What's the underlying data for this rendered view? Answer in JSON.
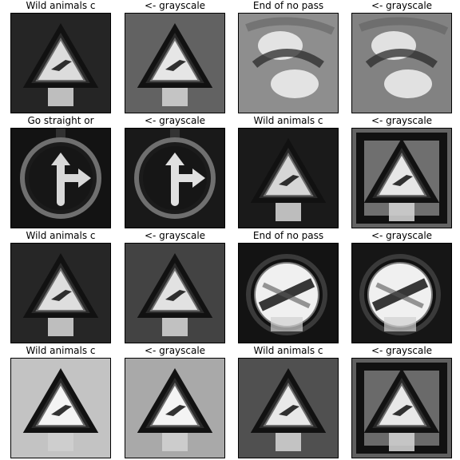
{
  "grid": {
    "tiles": [
      {
        "title": "Wild animals c",
        "kind": "triangle",
        "tone": "color",
        "bg": "#2a2a2a",
        "accent": "#dcdcdc"
      },
      {
        "title": "<- grayscale",
        "kind": "triangle",
        "tone": "gray",
        "bg": "#6e6e6e",
        "accent": "#e6e6e6"
      },
      {
        "title": "End of no pass",
        "kind": "blurred-circles",
        "tone": "color",
        "bg": "#8a8a8a",
        "accent": "#f2f2f2"
      },
      {
        "title": "<- grayscale",
        "kind": "blurred-circles",
        "tone": "gray",
        "bg": "#7a7a7a",
        "accent": "#f2f2f2"
      },
      {
        "title": "Go straight or",
        "kind": "straight-right",
        "tone": "color",
        "bg": "#1b1b1b",
        "accent": "#d8d8d8"
      },
      {
        "title": "<- grayscale",
        "kind": "straight-right",
        "tone": "gray",
        "bg": "#242424",
        "accent": "#e0e0e0"
      },
      {
        "title": "Wild animals c",
        "kind": "triangle",
        "tone": "color",
        "bg": "#1e1e1e",
        "accent": "#d6d6d6"
      },
      {
        "title": "<- grayscale",
        "kind": "triangle-boxed",
        "tone": "gray",
        "bg": "#6f6f6f",
        "accent": "#e6e6e6"
      },
      {
        "title": "Wild animals c",
        "kind": "triangle",
        "tone": "color",
        "bg": "#2b2b2b",
        "accent": "#dedede"
      },
      {
        "title": "<- grayscale",
        "kind": "triangle",
        "tone": "gray",
        "bg": "#4b4b4b",
        "accent": "#e2e2e2"
      },
      {
        "title": "End of no pass",
        "kind": "end-no-pass",
        "tone": "color",
        "bg": "#1e1e1e",
        "accent": "#f0f0f0"
      },
      {
        "title": "<- grayscale",
        "kind": "end-no-pass",
        "tone": "gray",
        "bg": "#222222",
        "accent": "#f0f0f0"
      },
      {
        "title": "Wild animals c",
        "kind": "triangle",
        "tone": "color",
        "bg": "#dadada",
        "accent": "#f4f4f4"
      },
      {
        "title": "<- grayscale",
        "kind": "triangle",
        "tone": "gray",
        "bg": "#bdbdbd",
        "accent": "#f4f4f4"
      },
      {
        "title": "Wild animals c",
        "kind": "triangle",
        "tone": "color",
        "bg": "#5a5a5a",
        "accent": "#e8e8e8"
      },
      {
        "title": "<- grayscale",
        "kind": "triangle-boxed",
        "tone": "gray",
        "bg": "#6a6a6a",
        "accent": "#e8e8e8"
      }
    ]
  }
}
